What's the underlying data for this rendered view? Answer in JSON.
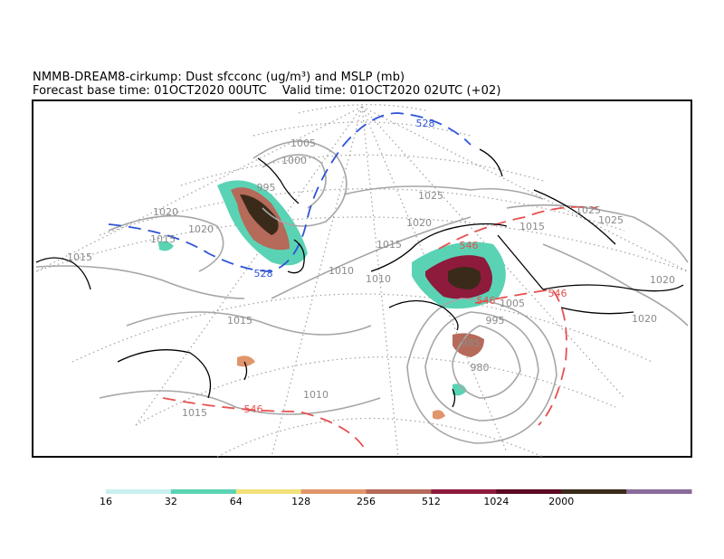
{
  "title": {
    "line1": "NMMB-DREAM8-cirkump: Dust sfcconc (ug/m³) and MSLP (mb)",
    "line2": "Forecast base time: 01OCT2020 00UTC    Valid time: 01OCT2020 02UTC (+02)"
  },
  "isobar_labels": [
    "1005",
    "1000",
    "995",
    "1020",
    "1020",
    "1015",
    "1015",
    "1025",
    "1020",
    "1015",
    "1010",
    "1010",
    "1015",
    "1025",
    "1025",
    "1020",
    "1020",
    "1005",
    "995",
    "985",
    "980",
    "1010",
    "1015",
    "1015"
  ],
  "height_labels": [
    "528",
    "528",
    "546",
    "546",
    "546",
    "546"
  ],
  "colorbar": {
    "ticks": [
      "16",
      "32",
      "64",
      "128",
      "256",
      "512",
      "1024",
      "2000"
    ],
    "colors": [
      "#c8f0ee",
      "#5ad3b4",
      "#f2e07a",
      "#e0956a",
      "#b56a5a",
      "#8e1a3c",
      "#5a0a22",
      "#3a2a1a",
      "#8a6a9a"
    ]
  },
  "colors": {
    "isobar": "#a6a6a6",
    "z500_528": "#2e54d6",
    "z500_546": "#e65050",
    "graticule": "#a0a0a0",
    "coast": "#000000"
  }
}
